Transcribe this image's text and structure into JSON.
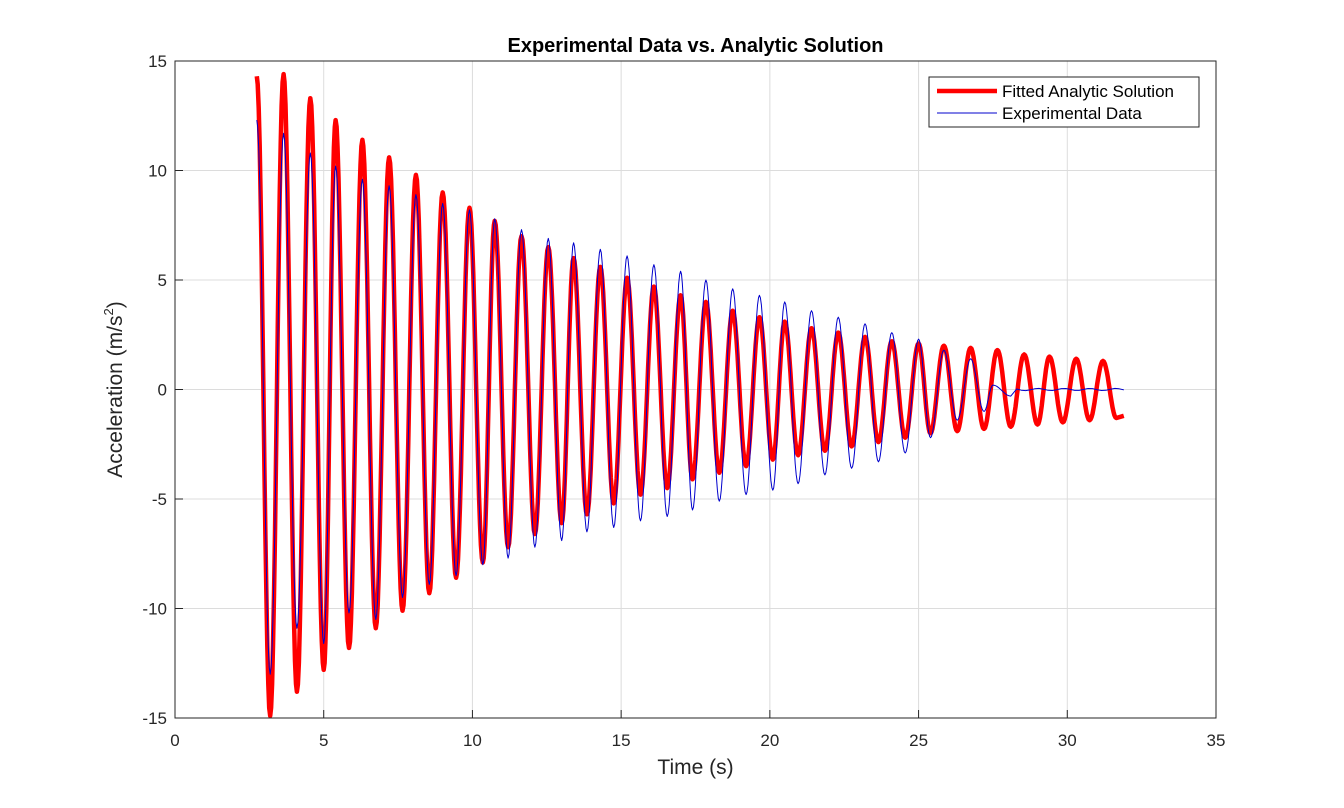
{
  "chart_data": {
    "type": "line",
    "title": "Experimental Data vs. Analytic Solution",
    "xlabel": "Time (s)",
    "ylabel_main": "Acceleration  (m/s",
    "ylabel_sup": "2",
    "ylabel_tail": ")",
    "xlim": [
      0,
      35
    ],
    "ylim": [
      -15,
      15
    ],
    "xticks": [
      0,
      5,
      10,
      15,
      20,
      25,
      30,
      35
    ],
    "yticks": [
      -15,
      -10,
      -5,
      0,
      5,
      10,
      15
    ],
    "grid": true,
    "legend_position": "top-right",
    "series": [
      {
        "name": "Fitted Analytic Solution",
        "color": "#ff0000",
        "style": "thick",
        "model": {
          "amplitude": 15.2,
          "decay": 0.0866,
          "frequency_hz": 1.14,
          "t_start": 2.75,
          "t_end": 31.9,
          "offset": 0
        },
        "peaks": [
          [
            2.75,
            14.3
          ],
          [
            3.65,
            14.4
          ],
          [
            4.55,
            13.3
          ],
          [
            5.4,
            12.3
          ],
          [
            6.3,
            11.4
          ],
          [
            7.2,
            10.6
          ],
          [
            8.1,
            9.8
          ],
          [
            9.0,
            9.0
          ],
          [
            9.9,
            8.3
          ],
          [
            10.75,
            7.7
          ],
          [
            11.65,
            7.0
          ],
          [
            12.55,
            6.5
          ],
          [
            13.4,
            6.0
          ],
          [
            14.3,
            5.6
          ],
          [
            15.2,
            5.1
          ],
          [
            16.1,
            4.7
          ],
          [
            17.0,
            4.3
          ],
          [
            17.85,
            4.0
          ],
          [
            18.75,
            3.6
          ],
          [
            19.65,
            3.3
          ],
          [
            20.5,
            3.1
          ],
          [
            21.4,
            2.8
          ],
          [
            22.3,
            2.6
          ],
          [
            23.2,
            2.4
          ],
          [
            24.1,
            2.2
          ],
          [
            25.0,
            2.1
          ],
          [
            25.85,
            2.0
          ],
          [
            26.75,
            1.9
          ],
          [
            27.65,
            1.8
          ],
          [
            28.55,
            1.6
          ],
          [
            29.4,
            1.5
          ],
          [
            30.3,
            1.4
          ],
          [
            31.2,
            1.3
          ]
        ],
        "troughs": [
          [
            3.2,
            -14.9
          ],
          [
            4.1,
            -13.8
          ],
          [
            5.0,
            -12.8
          ],
          [
            5.85,
            -11.8
          ],
          [
            6.75,
            -10.9
          ],
          [
            7.65,
            -10.1
          ],
          [
            8.55,
            -9.3
          ],
          [
            9.45,
            -8.6
          ],
          [
            10.35,
            -7.9
          ],
          [
            11.2,
            -7.2
          ],
          [
            12.1,
            -6.6
          ],
          [
            13.0,
            -6.1
          ],
          [
            13.85,
            -5.7
          ],
          [
            14.75,
            -5.2
          ],
          [
            15.65,
            -4.8
          ],
          [
            16.55,
            -4.5
          ],
          [
            17.4,
            -4.1
          ],
          [
            18.3,
            -3.8
          ],
          [
            19.2,
            -3.5
          ],
          [
            20.1,
            -3.2
          ],
          [
            20.95,
            -3.0
          ],
          [
            21.85,
            -2.8
          ],
          [
            22.75,
            -2.6
          ],
          [
            23.65,
            -2.4
          ],
          [
            24.55,
            -2.2
          ],
          [
            25.4,
            -2.0
          ],
          [
            26.3,
            -1.9
          ],
          [
            27.2,
            -1.8
          ],
          [
            28.1,
            -1.7
          ],
          [
            29.0,
            -1.6
          ],
          [
            29.85,
            -1.5
          ],
          [
            30.75,
            -1.4
          ],
          [
            31.65,
            -1.3
          ]
        ]
      },
      {
        "name": "Experimental Data",
        "color": "#0000cc",
        "style": "thin",
        "model": {
          "amplitude": 13.5,
          "decay": 0.075,
          "frequency_hz": 1.14,
          "t_start": 2.75,
          "t_decay_start": 25.5,
          "t_end": 31.9,
          "offset": 0
        },
        "peaks": [
          [
            2.75,
            12.3
          ],
          [
            3.65,
            11.7
          ],
          [
            4.55,
            10.8
          ],
          [
            5.4,
            10.2
          ],
          [
            6.3,
            9.6
          ],
          [
            7.2,
            9.3
          ],
          [
            8.1,
            8.9
          ],
          [
            9.0,
            8.5
          ],
          [
            9.9,
            8.2
          ],
          [
            10.75,
            7.8
          ],
          [
            11.65,
            7.3
          ],
          [
            12.55,
            6.9
          ],
          [
            13.4,
            6.7
          ],
          [
            14.3,
            6.4
          ],
          [
            15.2,
            6.1
          ],
          [
            16.1,
            5.7
          ],
          [
            17.0,
            5.4
          ],
          [
            17.85,
            5.0
          ],
          [
            18.75,
            4.6
          ],
          [
            19.65,
            4.3
          ],
          [
            20.5,
            4.0
          ],
          [
            21.4,
            3.6
          ],
          [
            22.3,
            3.3
          ],
          [
            23.2,
            3.0
          ],
          [
            24.1,
            2.6
          ],
          [
            25.0,
            2.3
          ],
          [
            25.85,
            1.8
          ],
          [
            26.75,
            1.4
          ],
          [
            27.5,
            0.2
          ]
        ],
        "troughs": [
          [
            3.2,
            -13.0
          ],
          [
            4.1,
            -10.9
          ],
          [
            5.0,
            -11.6
          ],
          [
            5.85,
            -10.2
          ],
          [
            6.75,
            -10.5
          ],
          [
            7.65,
            -9.5
          ],
          [
            8.55,
            -8.9
          ],
          [
            9.45,
            -8.5
          ],
          [
            10.35,
            -8.0
          ],
          [
            11.2,
            -7.7
          ],
          [
            12.1,
            -7.2
          ],
          [
            13.0,
            -6.9
          ],
          [
            13.85,
            -6.5
          ],
          [
            14.75,
            -6.3
          ],
          [
            15.65,
            -6.0
          ],
          [
            16.55,
            -5.8
          ],
          [
            17.4,
            -5.5
          ],
          [
            18.3,
            -5.1
          ],
          [
            19.2,
            -4.8
          ],
          [
            20.1,
            -4.6
          ],
          [
            20.95,
            -4.3
          ],
          [
            21.85,
            -3.9
          ],
          [
            22.75,
            -3.6
          ],
          [
            23.65,
            -3.3
          ],
          [
            24.55,
            -2.9
          ],
          [
            25.4,
            -2.2
          ],
          [
            26.3,
            -1.4
          ],
          [
            27.2,
            -1.0
          ],
          [
            28.1,
            -0.3
          ]
        ]
      }
    ]
  }
}
